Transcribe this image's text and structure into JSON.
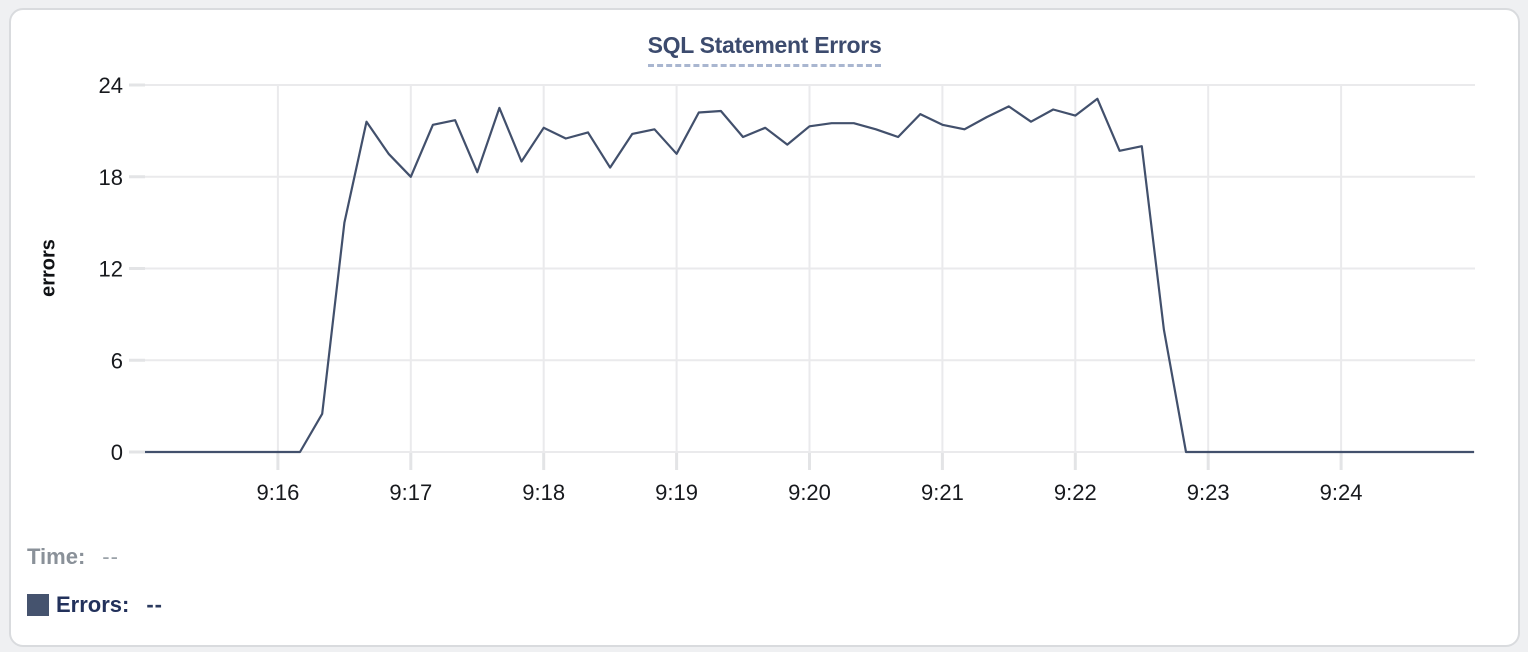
{
  "chart_data": {
    "type": "line",
    "title": "SQL Statement Errors",
    "ylabel": "errors",
    "ylim": [
      0,
      24
    ],
    "yticks": [
      0,
      6,
      12,
      18,
      24
    ],
    "xticks": [
      "9:16",
      "9:17",
      "9:18",
      "9:19",
      "9:20",
      "9:21",
      "9:22",
      "9:23",
      "9:24"
    ],
    "x_range": [
      "9:15:00",
      "9:25:00"
    ],
    "grid": true,
    "legend_position": "bottom-left",
    "series": [
      {
        "name": "Errors",
        "color": "#42506c",
        "start_time": "9:15:00",
        "interval_seconds": 10,
        "values": [
          0,
          0,
          0,
          0,
          0,
          0,
          0,
          0,
          2.5,
          15,
          21.6,
          19.5,
          18,
          21.4,
          21.7,
          18.3,
          22.5,
          19,
          21.2,
          20.5,
          20.9,
          18.6,
          20.8,
          21.1,
          19.5,
          22.2,
          22.3,
          20.6,
          21.2,
          20.1,
          21.3,
          21.5,
          21.5,
          21.1,
          20.6,
          22.1,
          21.4,
          21.1,
          21.9,
          22.6,
          21.6,
          22.4,
          22,
          23.1,
          19.7,
          20,
          8,
          0,
          0,
          0,
          0,
          0,
          0,
          0,
          0,
          0,
          0,
          0,
          0,
          0,
          0
        ]
      }
    ]
  },
  "legend": {
    "time_label": "Time:",
    "time_value": "--",
    "errors_label": "Errors:",
    "errors_value": "--"
  },
  "colors": {
    "series": "#42506c",
    "swatch": "#45536e",
    "title": "#3c4b6e",
    "title_underline": "#a9b6d0",
    "gridline": "#eaeaec",
    "tick_dash": "#e3e4e6",
    "axis_text": "#17191d",
    "time_text": "#8a9199",
    "errors_text": "#22315b"
  }
}
